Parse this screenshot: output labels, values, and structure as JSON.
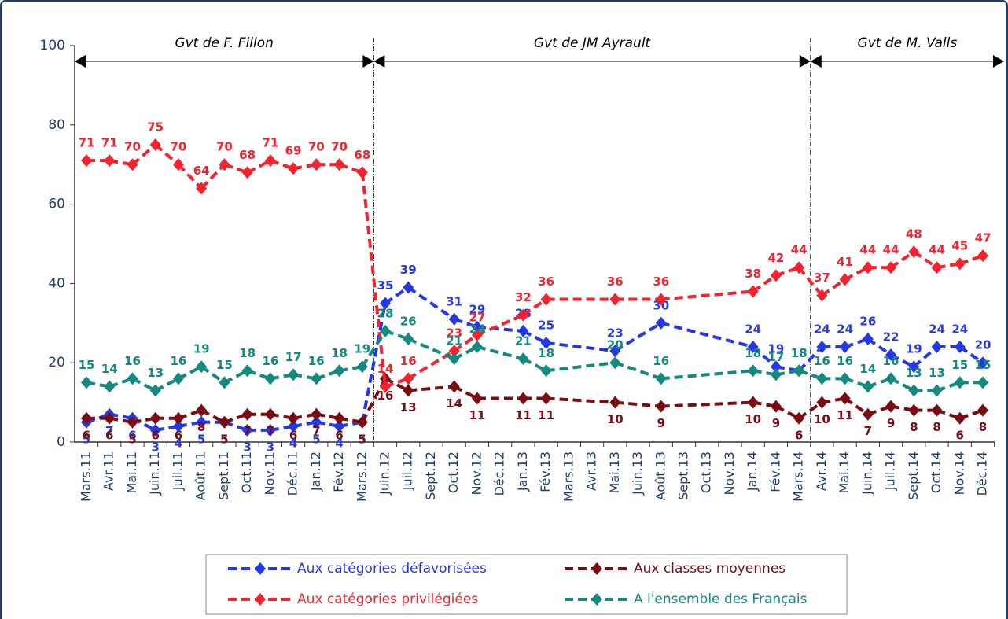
{
  "chart_data": {
    "type": "line",
    "annotations": [
      {
        "text": "Gvt de F. Fillon"
      },
      {
        "text": "Gvt de JM Ayrault"
      },
      {
        "text": "Gvt de M. Valls"
      }
    ],
    "categories": [
      "Mars.11",
      "Avr.11",
      "Mai.11",
      "Juin.11",
      "Juil.11",
      "Août.11",
      "Sept.11",
      "Oct.11",
      "Nov.11",
      "Déc.11",
      "Jan.12",
      "Fév.12",
      "Mars.12",
      "Juin.12",
      "Juil.12",
      "Sept.12",
      "Oct.12",
      "Nov.12",
      "Déc.12",
      "Jan.13",
      "Fév.13",
      "Mars.13",
      "Avr.13",
      "Mai.13",
      "Juin.13",
      "Août.13",
      "Sept.13",
      "Oct.13",
      "Nov.13",
      "Jan.14",
      "Fév.14",
      "Mars.14",
      "Avr.14",
      "Mai.14",
      "Juin.14",
      "Juil.14",
      "Sept.14",
      "Oct.14",
      "Nov.14",
      "Déc.14"
    ],
    "series": [
      {
        "name": "Aux catégories défavorisées",
        "color": "#2438ea",
        "values": [
          5,
          7,
          6,
          3,
          4,
          5,
          5,
          3,
          3,
          4,
          5,
          4,
          5,
          35,
          39,
          null,
          31,
          29,
          null,
          28,
          25,
          null,
          null,
          23,
          null,
          30,
          null,
          null,
          null,
          24,
          19,
          18,
          24,
          24,
          26,
          22,
          19,
          24,
          24,
          20
        ]
      },
      {
        "name": "Aux classes moyennes",
        "color": "#7a0c12",
        "values": [
          6,
          6,
          5,
          6,
          6,
          8,
          5,
          7,
          7,
          6,
          7,
          6,
          5,
          16,
          13,
          null,
          14,
          11,
          null,
          11,
          11,
          null,
          null,
          10,
          null,
          9,
          null,
          null,
          null,
          10,
          9,
          6,
          10,
          11,
          7,
          9,
          8,
          8,
          6,
          8
        ]
      },
      {
        "name": "Aux catégories privilégiées",
        "color": "#f5222d",
        "values": [
          71,
          71,
          70,
          75,
          70,
          64,
          70,
          68,
          71,
          69,
          70,
          70,
          68,
          14,
          16,
          null,
          23,
          27,
          null,
          32,
          36,
          null,
          null,
          36,
          null,
          36,
          null,
          null,
          null,
          38,
          42,
          44,
          37,
          41,
          44,
          44,
          48,
          44,
          45,
          47
        ]
      },
      {
        "name": "A l'ensemble des Français",
        "color": "#13897f",
        "values": [
          15,
          14,
          16,
          13,
          16,
          19,
          15,
          18,
          16,
          17,
          16,
          18,
          19,
          28,
          26,
          null,
          21,
          24,
          null,
          21,
          18,
          null,
          null,
          20,
          null,
          16,
          null,
          null,
          null,
          18,
          17,
          18,
          16,
          16,
          14,
          16,
          13,
          13,
          15,
          15
        ]
      }
    ],
    "ylim": [
      0,
      100
    ],
    "yticks": [
      0,
      20,
      40,
      60,
      80,
      100
    ],
    "grid": false,
    "legend": "bottom"
  }
}
